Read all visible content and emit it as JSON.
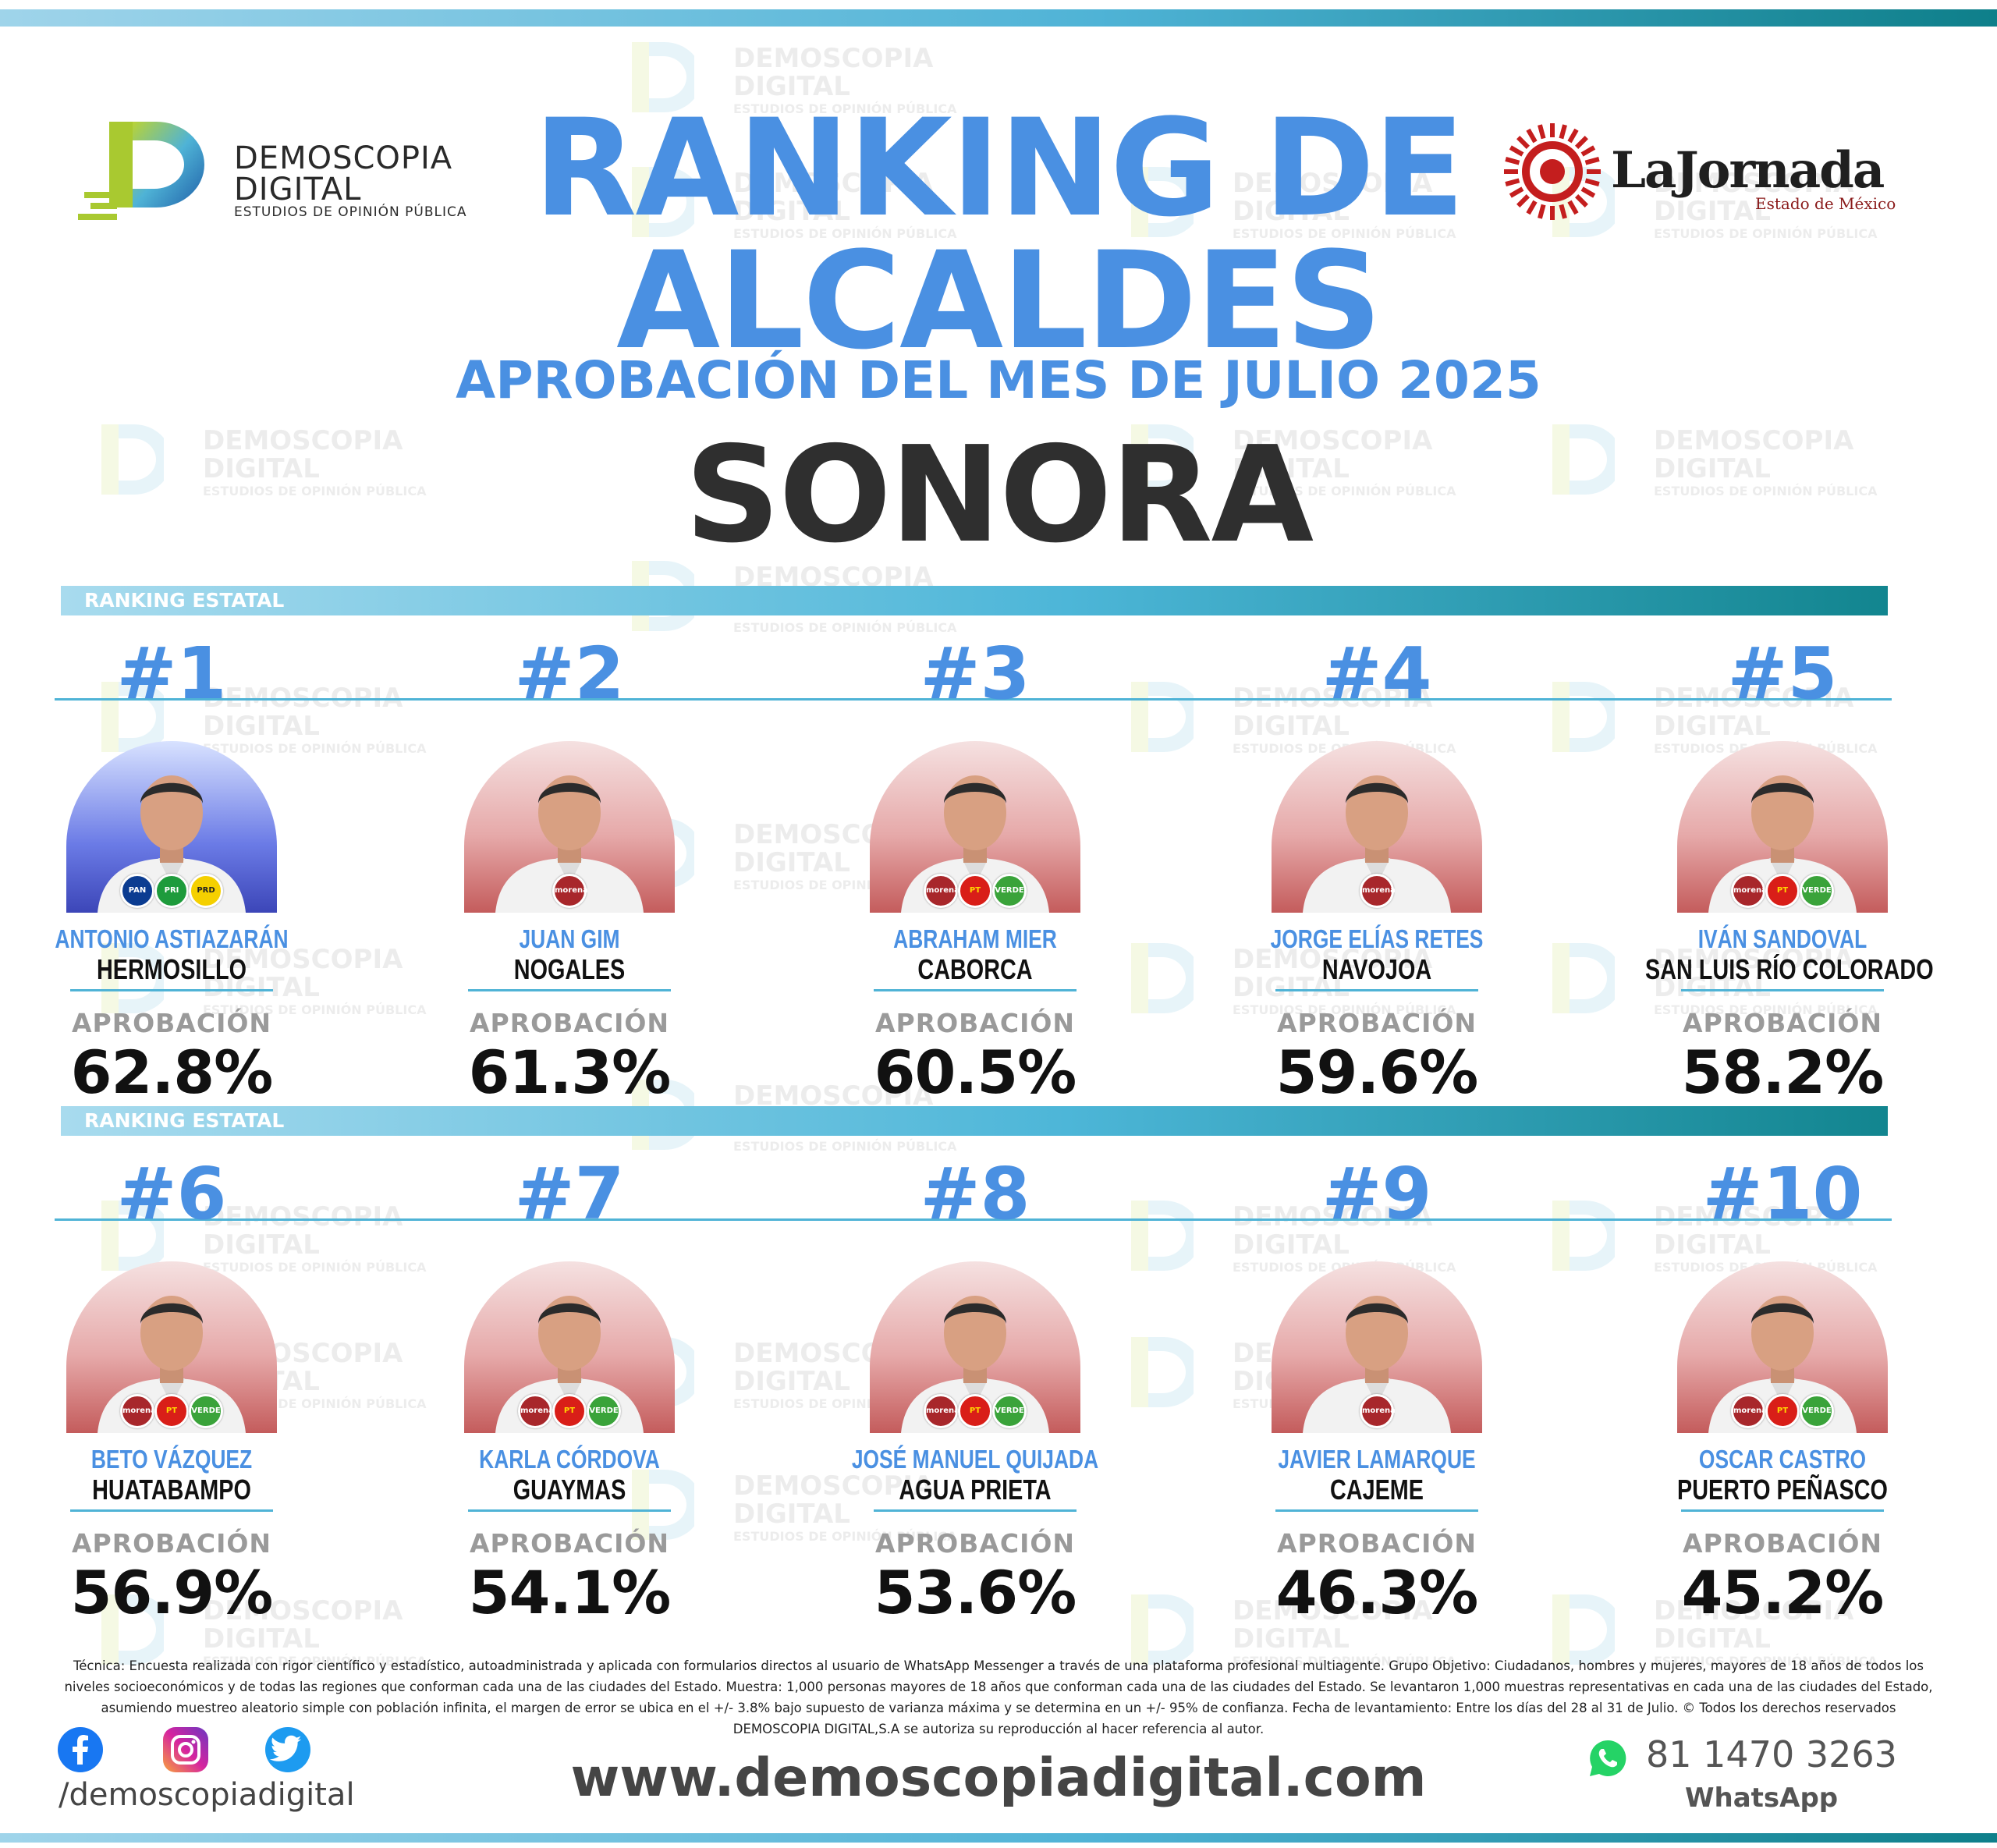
{
  "header": {
    "title_line1": "RANKING DE",
    "title_line2": "ALCALDES",
    "subtitle": "APROBACIÓN DEL MES DE JULIO 2025",
    "state": "SONORA"
  },
  "logo_left": {
    "line1": "DEMOSCOPIA",
    "line2": "DIGITAL",
    "line3": "ESTUDIOS DE OPINIÓN PÚBLICA"
  },
  "logo_right": {
    "name": "LaJornada",
    "sub": "Estado de México"
  },
  "watermark": {
    "line1": "DEMOSCOPIA",
    "line2": "DIGITAL",
    "line3": "ESTUDIOS DE OPINIÓN PÚBLICA"
  },
  "section_label": "RANKING ESTATAL",
  "approval_label": "APROBACIÓN",
  "mayors": [
    {
      "rank": "#1",
      "name": "ANTONIO ASTIAZARÁN",
      "city": "HERMOSILLO",
      "approval": "62.8%",
      "approval_value": 62.8,
      "parties": [
        "PAN",
        "PRI",
        "PRD"
      ]
    },
    {
      "rank": "#2",
      "name": "JUAN GIM",
      "city": "NOGALES",
      "approval": "61.3%",
      "approval_value": 61.3,
      "parties": [
        "morena"
      ]
    },
    {
      "rank": "#3",
      "name": "ABRAHAM MIER",
      "city": "CABORCA",
      "approval": "60.5%",
      "approval_value": 60.5,
      "parties": [
        "morena",
        "PT",
        "VERDE"
      ]
    },
    {
      "rank": "#4",
      "name": "JORGE ELÍAS RETES",
      "city": "NAVOJOA",
      "approval": "59.6%",
      "approval_value": 59.6,
      "parties": [
        "morena"
      ]
    },
    {
      "rank": "#5",
      "name": "IVÁN SANDOVAL",
      "city": "SAN LUIS RÍO COLORADO",
      "approval": "58.2%",
      "approval_value": 58.2,
      "parties": [
        "morena",
        "PT",
        "VERDE"
      ]
    },
    {
      "rank": "#6",
      "name": "BETO VÁZQUEZ",
      "city": "HUATABAMPO",
      "approval": "56.9%",
      "approval_value": 56.9,
      "parties": [
        "morena",
        "PT",
        "VERDE"
      ]
    },
    {
      "rank": "#7",
      "name": "KARLA CÓRDOVA",
      "city": "GUAYMAS",
      "approval": "54.1%",
      "approval_value": 54.1,
      "parties": [
        "morena",
        "PT",
        "VERDE"
      ]
    },
    {
      "rank": "#8",
      "name": "JOSÉ MANUEL QUIJADA",
      "city": "AGUA PRIETA",
      "approval": "53.6%",
      "approval_value": 53.6,
      "parties": [
        "morena",
        "PT",
        "VERDE"
      ]
    },
    {
      "rank": "#9",
      "name": "JAVIER LAMARQUE",
      "city": "CAJEME",
      "approval": "46.3%",
      "approval_value": 46.3,
      "parties": [
        "morena"
      ]
    },
    {
      "rank": "#10",
      "name": "OSCAR CASTRO",
      "city": "PUERTO PEÑASCO",
      "approval": "45.2%",
      "approval_value": 45.2,
      "parties": [
        "morena",
        "PT",
        "VERDE"
      ]
    }
  ],
  "footer": {
    "methodology": "Técnica: Encuesta realizada con rigor científico y estadístico, autoadministrada y aplicada con formularios directos al usuario de WhatsApp Messenger a través de una plataforma profesional multiagente. Grupo Objetivo: Ciudadanos, hombres y mujeres, mayores de 18 años de todos los niveles socioeconómicos y de todas las regiones que conforman cada una de las ciudades del Estado. Muestra: 1,000 personas mayores de 18 años que conforman cada una de las ciudades del Estado. Se levantaron 1,000 muestras representativas en cada una de las ciudades del Estado, asumiendo muestreo aleatorio simple con población infinita, el margen de error se ubica en el +/- 3.8% bajo supuesto de varianza máxima y se determina en un +/- 95% de confianza. Fecha de levantamiento: Entre los días del 28 al 31 de Julio. © Todos los derechos reservados DEMOSCOPIA DIGITAL,S.A se autoriza su reproducción al hacer referencia al autor.",
    "social_handle": "/demoscopiadigital",
    "website": "www.demoscopiadigital.com",
    "phone": "81 1470 3263",
    "phone_label": "WhatsApp"
  },
  "colors": {
    "accent_blue": "#4a90e2",
    "bar_start": "#a8dbee",
    "bar_end": "#12858f",
    "morena": "#a8272b",
    "pt": "#d91e18",
    "verde": "#3aa33a",
    "pan": "#0b3c91",
    "pri": "#1e9b3c",
    "prd": "#f5d000",
    "facebook": "#1877f2",
    "instagram": "#c13584",
    "twitter": "#1d9bf0",
    "whatsapp": "#25d366"
  }
}
